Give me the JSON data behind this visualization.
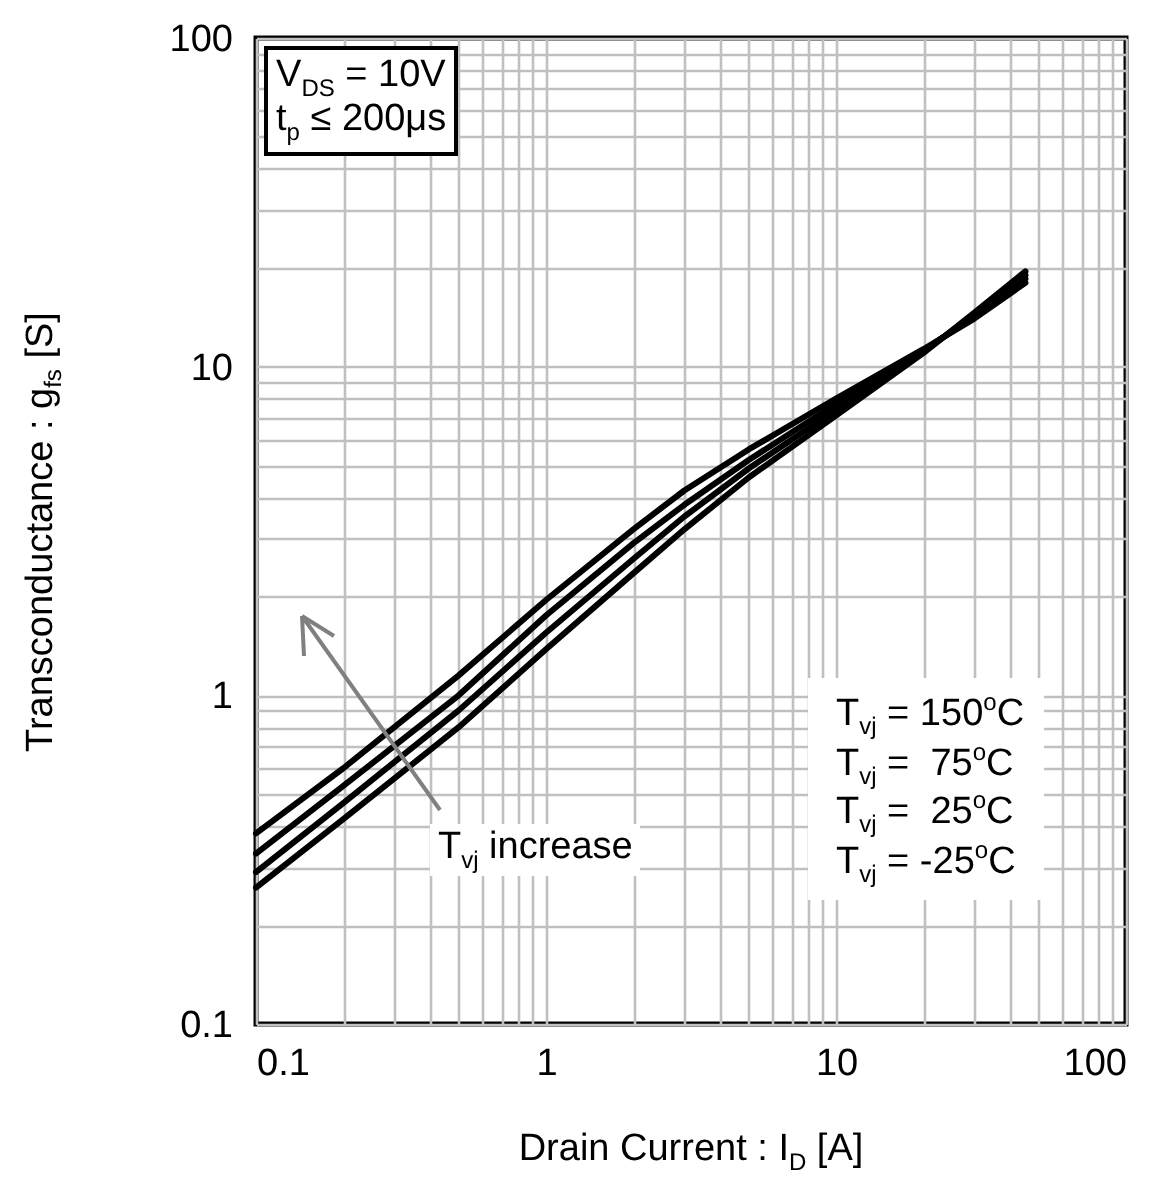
{
  "chart_data": {
    "type": "line",
    "xlabel": "Drain Current : I$_{D}$ [A]",
    "ylabel": "Transconductance : g$_{fs}$ [S]",
    "log": "xy",
    "x": [
      0.1,
      0.2,
      0.5,
      1,
      2,
      3,
      5,
      10,
      20,
      30,
      45
    ],
    "series": [
      {
        "color": "#000000",
        "values": [
          0.38,
          0.6,
          1.15,
          1.95,
          3.2,
          4.2,
          5.6,
          8.0,
          11.3,
          14,
          18
        ]
      },
      {
        "color": "#000000",
        "values": [
          0.33,
          0.53,
          1.0,
          1.75,
          2.9,
          3.8,
          5.2,
          7.7,
          11.2,
          14.2,
          18.5
        ]
      },
      {
        "color": "#000000",
        "values": [
          0.29,
          0.47,
          0.9,
          1.55,
          2.6,
          3.5,
          4.9,
          7.4,
          11.1,
          14.4,
          19
        ]
      },
      {
        "color": "#000000",
        "values": [
          0.26,
          0.42,
          0.8,
          1.38,
          2.35,
          3.2,
          4.6,
          7.1,
          11.0,
          14.6,
          19.5
        ]
      }
    ],
    "xlim": [
      0.1,
      100
    ],
    "ylim": [
      0.1,
      100
    ],
    "xticks": [
      0.1,
      {
        "value": 0.2,
        "label": null
      },
      {
        "value": 0.3,
        "label": null
      },
      {
        "value": 0.4,
        "label": null
      },
      {
        "value": 0.5,
        "label": null
      },
      {
        "value": 0.6,
        "label": null
      },
      {
        "value": 0.7,
        "label": null
      },
      {
        "value": 0.8,
        "label": null
      },
      {
        "value": 0.9,
        "label": null
      },
      1,
      {
        "value": 2,
        "label": null
      },
      {
        "value": 3,
        "label": null
      },
      {
        "value": 4,
        "label": null
      },
      {
        "value": 5,
        "label": null
      },
      {
        "value": 6,
        "label": null
      },
      {
        "value": 7,
        "label": null
      },
      {
        "value": 8,
        "label": null
      },
      {
        "value": 9,
        "label": null
      },
      10,
      {
        "value": 20,
        "label": null
      },
      {
        "value": 30,
        "label": null
      },
      {
        "value": 40,
        "label": null
      },
      {
        "value": 50,
        "label": null
      },
      {
        "value": 60,
        "label": null
      },
      {
        "value": 70,
        "label": null
      },
      {
        "value": 80,
        "label": null
      },
      {
        "value": 90,
        "label": null
      },
      100
    ],
    "yticks": [
      0.1,
      {
        "value": 0.2,
        "label": null
      },
      {
        "value": 0.3,
        "label": null
      },
      {
        "value": 0.4,
        "label": null
      },
      {
        "value": 0.5,
        "label": null
      },
      {
        "value": 0.6,
        "label": null
      },
      {
        "value": 0.7,
        "label": null
      },
      {
        "value": 0.8,
        "label": null
      },
      {
        "value": 0.9,
        "label": null
      },
      1,
      {
        "value": 2,
        "label": null
      },
      {
        "value": 3,
        "label": null
      },
      {
        "value": 4,
        "label": null
      },
      {
        "value": 5,
        "label": null
      },
      {
        "value": 6,
        "label": null
      },
      {
        "value": 7,
        "label": null
      },
      {
        "value": 8,
        "label": null
      },
      {
        "value": 9,
        "label": null
      },
      10,
      {
        "value": 20,
        "label": null
      },
      {
        "value": 30,
        "label": null
      },
      {
        "value": 40,
        "label": null
      },
      {
        "value": 50,
        "label": null
      },
      {
        "value": 60,
        "label": null
      },
      {
        "value": 70,
        "label": null
      },
      {
        "value": 80,
        "label": null
      },
      {
        "value": 90,
        "label": null
      },
      100
    ],
    "grid": true,
    "line_style": "solid",
    "marker": "none",
    "annotations": [
      "V$_{DS}$ = 10V",
      "t$_{p}$ ≤ 200μs",
      "T$_{vj}$ = 150$^{o}$C",
      "T$_{vj}$ =  75$^{o}$C",
      "T$_{vj}$ =  25$^{o}$C",
      "T$_{vj}$ = -25$^{o}$C",
      "T$_{vj}$ increase"
    ]
  }
}
